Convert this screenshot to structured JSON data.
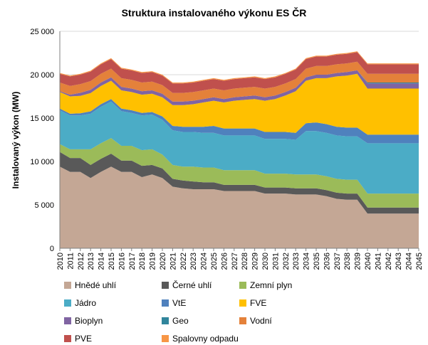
{
  "chart_data": {
    "type": "area",
    "stacked": true,
    "title": "Struktura instalovaného výkonu ES ČR",
    "xlabel": "",
    "ylabel": "Instalovaný výkon (MW)",
    "ylim": [
      0,
      25000
    ],
    "yticks": [
      0,
      5000,
      10000,
      15000,
      20000,
      25000
    ],
    "ytick_labels": [
      "0",
      "5 000",
      "10 000",
      "15 000",
      "20 000",
      "25 000"
    ],
    "grid": "horizontal",
    "legend_position": "bottom",
    "x": [
      "2010",
      "2011",
      "2012",
      "2013",
      "2014",
      "2015",
      "2016",
      "2017",
      "2018",
      "2019",
      "2020",
      "2021",
      "2022",
      "2023",
      "2024",
      "2025",
      "2026",
      "2027",
      "2028",
      "2029",
      "2030",
      "2031",
      "2032",
      "2033",
      "2034",
      "2035",
      "2036",
      "2037",
      "2038",
      "2039",
      "2040",
      "2041",
      "2042",
      "2043",
      "2044",
      "2045"
    ],
    "series": [
      {
        "name": "Hnědé uhlí",
        "color": "#C4A795",
        "values": [
          9400,
          8800,
          8800,
          8100,
          8800,
          9400,
          8800,
          8800,
          8200,
          8500,
          8100,
          7100,
          6900,
          6800,
          6800,
          6800,
          6600,
          6600,
          6600,
          6600,
          6300,
          6300,
          6300,
          6200,
          6200,
          6200,
          6000,
          5700,
          5600,
          5600,
          4000,
          4000,
          4000,
          4000,
          4000,
          4000
        ]
      },
      {
        "name": "Černé uhlí",
        "color": "#595959",
        "values": [
          1700,
          1600,
          1600,
          1500,
          1500,
          1500,
          1300,
          1300,
          1300,
          1100,
          1100,
          900,
          900,
          900,
          800,
          800,
          700,
          700,
          700,
          700,
          700,
          700,
          700,
          700,
          700,
          700,
          700,
          700,
          700,
          700,
          700,
          700,
          700,
          700,
          700,
          700
        ]
      },
      {
        "name": "Zemní plyn",
        "color": "#9BBB59",
        "values": [
          900,
          1000,
          1000,
          1800,
          1800,
          1800,
          1700,
          1700,
          1800,
          1800,
          1600,
          1600,
          1600,
          1700,
          1700,
          1700,
          1700,
          1700,
          1700,
          1700,
          1600,
          1600,
          1600,
          1600,
          1600,
          1600,
          1600,
          1600,
          1600,
          1600,
          1600,
          1600,
          1600,
          1600,
          1600,
          1600
        ]
      },
      {
        "name": "Jádro",
        "color": "#4BACC6",
        "values": [
          3900,
          3900,
          3900,
          4100,
          4200,
          4200,
          4000,
          3800,
          4000,
          4000,
          4000,
          4000,
          4000,
          4000,
          4000,
          4000,
          4000,
          4000,
          4000,
          4000,
          4000,
          4000,
          4000,
          4000,
          5000,
          5000,
          5000,
          5000,
          5000,
          5000,
          5800,
          5800,
          5800,
          5800,
          5800,
          5800
        ]
      },
      {
        "name": "VtE",
        "color": "#4F81BD",
        "values": [
          200,
          200,
          260,
          280,
          300,
          300,
          300,
          300,
          300,
          300,
          400,
          500,
          600,
          600,
          700,
          800,
          800,
          800,
          800,
          800,
          800,
          800,
          800,
          800,
          900,
          1000,
          1000,
          1000,
          1000,
          1000,
          1000,
          1000,
          1000,
          1000,
          1000,
          1000
        ]
      },
      {
        "name": "FVE",
        "color": "#FFC000",
        "values": [
          1900,
          2000,
          2000,
          2100,
          2100,
          2100,
          2100,
          2100,
          2100,
          2100,
          2200,
          2400,
          2500,
          2600,
          2800,
          2900,
          3000,
          3200,
          3300,
          3400,
          3600,
          3800,
          4200,
          4800,
          4900,
          5100,
          5300,
          5800,
          6000,
          6200,
          5300,
          5300,
          5300,
          5300,
          5300,
          5300
        ]
      },
      {
        "name": "Bioplyn",
        "color": "#8064A2",
        "values": [
          100,
          200,
          350,
          380,
          400,
          400,
          400,
          400,
          400,
          400,
          400,
          400,
          400,
          400,
          400,
          400,
          400,
          400,
          400,
          400,
          400,
          400,
          400,
          400,
          400,
          400,
          400,
          400,
          400,
          400,
          600,
          600,
          600,
          600,
          600,
          600
        ]
      },
      {
        "name": "Geo",
        "color": "#31859C",
        "values": [
          0,
          0,
          0,
          0,
          0,
          0,
          0,
          0,
          0,
          0,
          0,
          0,
          0,
          0,
          0,
          0,
          0,
          0,
          0,
          0,
          0,
          0,
          0,
          0,
          0,
          0,
          0,
          0,
          0,
          0,
          100,
          100,
          100,
          100,
          100,
          100
        ]
      },
      {
        "name": "Vodní",
        "color": "#E4813A",
        "values": [
          1000,
          1000,
          1000,
          1000,
          1000,
          1000,
          1000,
          1000,
          1000,
          1000,
          1000,
          1000,
          1000,
          1000,
          1000,
          1000,
          1000,
          1000,
          1000,
          1000,
          1000,
          1000,
          1000,
          1000,
          1000,
          1000,
          1000,
          1000,
          1000,
          1000,
          1000,
          1000,
          1000,
          1000,
          1000,
          1000
        ]
      },
      {
        "name": "PVE",
        "color": "#C0504D",
        "values": [
          1000,
          1100,
          1100,
          1100,
          1100,
          1100,
          1100,
          1100,
          1100,
          1100,
          1100,
          1100,
          1100,
          1100,
          1100,
          1100,
          1100,
          1100,
          1100,
          1100,
          1100,
          1100,
          1100,
          1100,
          1100,
          1100,
          1100,
          1100,
          1100,
          1100,
          1100,
          1100,
          1100,
          1100,
          1100,
          1100
        ]
      },
      {
        "name": "Spalovny odpadu",
        "color": "#F79646",
        "values": [
          100,
          100,
          100,
          100,
          100,
          100,
          100,
          100,
          100,
          100,
          100,
          100,
          100,
          100,
          100,
          100,
          100,
          100,
          100,
          100,
          100,
          100,
          100,
          100,
          100,
          100,
          100,
          100,
          100,
          100,
          100,
          100,
          100,
          100,
          100,
          100
        ]
      }
    ]
  }
}
